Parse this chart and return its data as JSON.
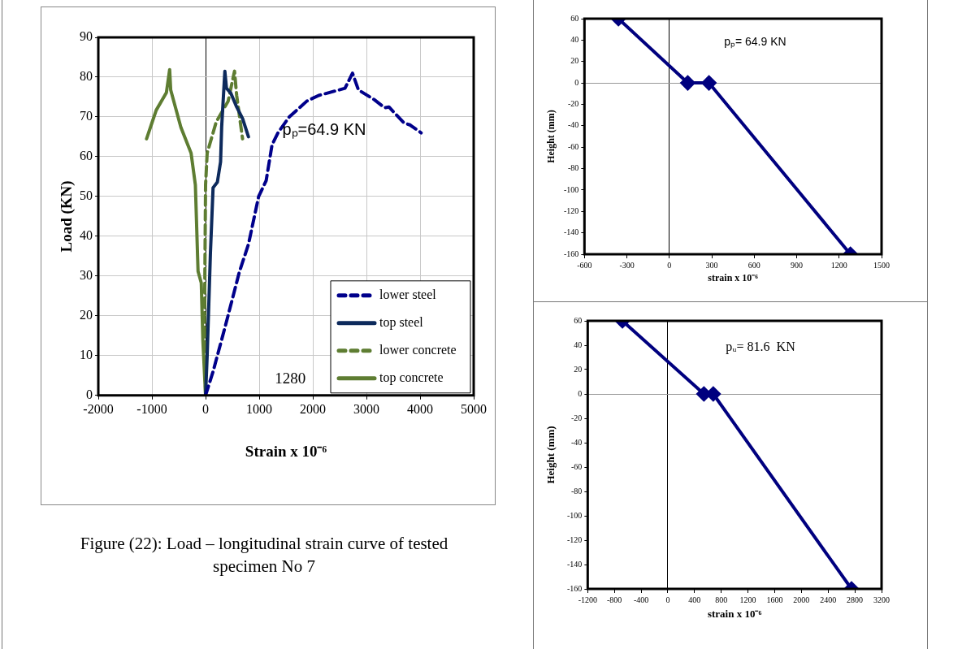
{
  "chart_data": [
    {
      "type": "line",
      "xlabel": "Strain x 10⁻⁶",
      "ylabel": "Load (KN)",
      "xlim": [
        -2000,
        5000
      ],
      "xticks": [
        -2000,
        -1000,
        0,
        1000,
        2000,
        3000,
        4000,
        5000
      ],
      "ylim": [
        0,
        90
      ],
      "yticks": [
        0,
        10,
        20,
        30,
        40,
        50,
        60,
        70,
        80,
        90
      ],
      "grid": true,
      "legend": "bottom right",
      "marker": "none",
      "annotations": [
        "pₚ=64.9 KN",
        "1280",
        "Figure (22): Load – longitudinal strain curve of tested specimen No 7"
      ],
      "series": [
        {
          "name": "lower steel",
          "color": "#00008b",
          "line_style": "dashed",
          "x": [
            0,
            140,
            360,
            630,
            800,
            990,
            1130,
            1240,
            1350,
            1560,
            1890,
            2110,
            2600,
            2740,
            2850,
            3150,
            3340,
            3420,
            3700,
            3810,
            4020
          ],
          "values": [
            0,
            6,
            17,
            31,
            38,
            50,
            54,
            63,
            66,
            70,
            74,
            75.4,
            77.2,
            81,
            76.8,
            74.3,
            72.3,
            72.5,
            68.5,
            68,
            66
          ]
        },
        {
          "name": "top steel",
          "color": "#0d2a5c",
          "line_style": "solid",
          "x": [
            0,
            30,
            90,
            140,
            220,
            280,
            300,
            360,
            390,
            470,
            580,
            690,
            800
          ],
          "values": [
            0,
            10,
            35.5,
            52.2,
            53.6,
            58.7,
            67.4,
            81.5,
            77.2,
            76,
            72.5,
            69.6,
            65
          ]
        },
        {
          "name": "lower concrete",
          "color": "#5e7d32",
          "line_style": "dashed",
          "x": [
            0,
            -20,
            -10,
            0,
            30,
            200,
            420,
            540,
            580,
            690
          ],
          "values": [
            0,
            17.4,
            35.5,
            52.9,
            60.9,
            68.8,
            73.9,
            81.5,
            75.4,
            64.5
          ]
        },
        {
          "name": "top concrete",
          "color": "#5e7d32",
          "line_style": "solid",
          "x": [
            0,
            -50,
            -80,
            -140,
            -190,
            -270,
            -460,
            -650,
            -670,
            -730,
            -920,
            -1010,
            -1100
          ],
          "values": [
            0,
            13.8,
            28.3,
            31.2,
            52.9,
            60.9,
            67.4,
            76.8,
            81.9,
            76.1,
            71.7,
            68.1,
            64.5
          ]
        }
      ]
    },
    {
      "type": "line",
      "xlabel": "strain x 10⁻⁶",
      "ylabel": "Height (mm)",
      "xlim": [
        -600,
        1500
      ],
      "xticks": [
        -600,
        -300,
        0,
        300,
        600,
        900,
        1200,
        1500
      ],
      "ylim": [
        -160,
        60
      ],
      "yticks": [
        -160,
        -140,
        -120,
        -100,
        -80,
        -60,
        -40,
        -20,
        0,
        20,
        40,
        60
      ],
      "marker": "diamond",
      "annotations": [
        "pₚ= 64.9 KN"
      ],
      "series": [
        {
          "color": "#00007f",
          "line_style": "solid",
          "x": [
            -360,
            130,
            280,
            1280
          ],
          "values": [
            60,
            0,
            0,
            -160
          ]
        }
      ]
    },
    {
      "type": "line",
      "xlabel": "strain x 10⁻⁶",
      "ylabel": "Height (mm)",
      "xlim": [
        -1200,
        3200
      ],
      "xticks": [
        -1200,
        -800,
        -400,
        0,
        400,
        800,
        1200,
        1600,
        2000,
        2400,
        2800,
        3200
      ],
      "ylim": [
        -160,
        60
      ],
      "yticks": [
        -160,
        -140,
        -120,
        -100,
        -80,
        -60,
        -40,
        -20,
        0,
        20,
        40,
        60
      ],
      "marker": "diamond",
      "annotations": [
        "pᵤ= 81.6  KN"
      ],
      "series": [
        {
          "color": "#00007f",
          "line_style": "solid",
          "x": [
            -680,
            540,
            680,
            2750
          ],
          "values": [
            60,
            0,
            0,
            -160
          ]
        }
      ]
    }
  ]
}
